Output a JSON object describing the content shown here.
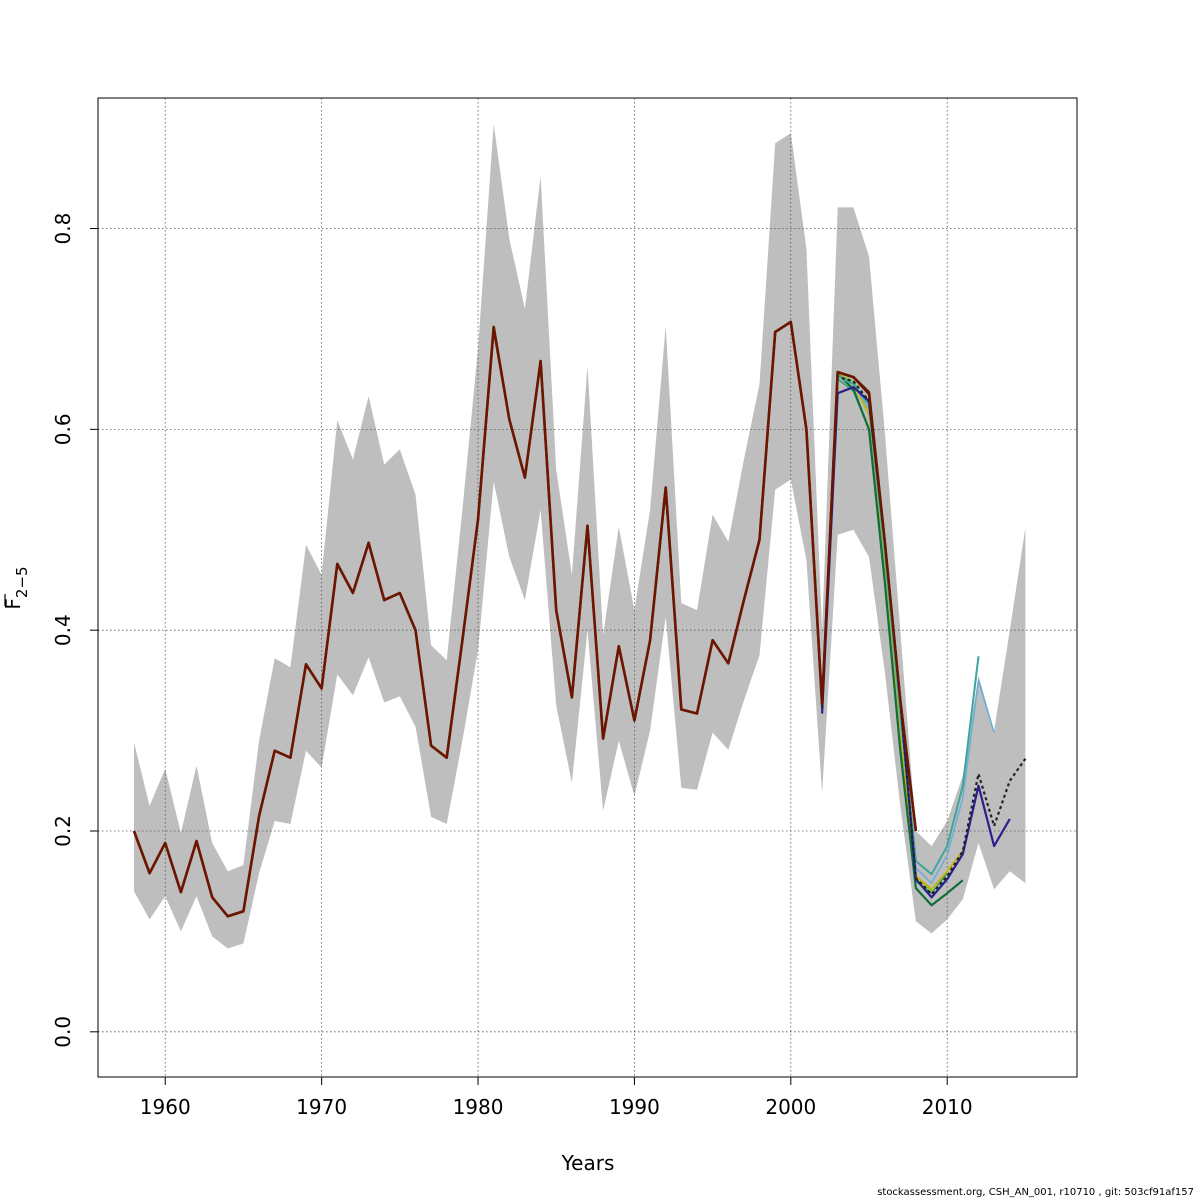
{
  "chart_data": {
    "type": "line",
    "title": "",
    "xlabel": "Years",
    "ylabel": "F 2-5",
    "ylabel_main": "F",
    "ylabel_sub": "2−5",
    "xlim": [
      1955.7,
      2018.3
    ],
    "ylim": [
      -0.045,
      0.93
    ],
    "x_ticks": [
      1960,
      1970,
      1980,
      1990,
      2000,
      2010
    ],
    "y_ticks": [
      0.0,
      0.2,
      0.4,
      0.6,
      0.8
    ],
    "x_tick_labels": [
      "1960",
      "1970",
      "1980",
      "1990",
      "2000",
      "2010"
    ],
    "y_tick_labels": [
      "0.0",
      "0.2",
      "0.4",
      "0.6",
      "0.8"
    ],
    "grid": true,
    "band_color": "#bebebe",
    "band": {
      "x": [
        1958,
        1959,
        1960,
        1961,
        1962,
        1963,
        1964,
        1965,
        1966,
        1967,
        1968,
        1969,
        1970,
        1971,
        1972,
        1973,
        1974,
        1975,
        1976,
        1977,
        1978,
        1979,
        1980,
        1981,
        1982,
        1983,
        1984,
        1985,
        1986,
        1987,
        1988,
        1989,
        1990,
        1991,
        1992,
        1993,
        1994,
        1995,
        1996,
        1997,
        1998,
        1999,
        2000,
        2001,
        2002,
        2003,
        2004,
        2005,
        2006,
        2007,
        2008,
        2009,
        2010,
        2011,
        2012,
        2013,
        2014,
        2015
      ],
      "upper": [
        0.288,
        0.225,
        0.262,
        0.198,
        0.265,
        0.188,
        0.16,
        0.166,
        0.29,
        0.372,
        0.363,
        0.485,
        0.455,
        0.609,
        0.57,
        0.633,
        0.565,
        0.58,
        0.535,
        0.385,
        0.37,
        0.52,
        0.68,
        0.904,
        0.79,
        0.72,
        0.852,
        0.56,
        0.455,
        0.663,
        0.395,
        0.503,
        0.42,
        0.52,
        0.703,
        0.427,
        0.42,
        0.515,
        0.488,
        0.57,
        0.645,
        0.885,
        0.895,
        0.78,
        0.4,
        0.821,
        0.821,
        0.772,
        0.6,
        0.4,
        0.2,
        0.185,
        0.21,
        0.255,
        0.355,
        0.3,
        0.4,
        0.502
      ],
      "lower": [
        0.14,
        0.112,
        0.135,
        0.1,
        0.135,
        0.095,
        0.083,
        0.088,
        0.158,
        0.21,
        0.207,
        0.28,
        0.263,
        0.356,
        0.335,
        0.373,
        0.328,
        0.334,
        0.304,
        0.214,
        0.207,
        0.29,
        0.38,
        0.548,
        0.473,
        0.43,
        0.52,
        0.325,
        0.248,
        0.4,
        0.22,
        0.29,
        0.235,
        0.3,
        0.413,
        0.243,
        0.241,
        0.298,
        0.281,
        0.33,
        0.375,
        0.54,
        0.55,
        0.47,
        0.238,
        0.495,
        0.5,
        0.473,
        0.36,
        0.225,
        0.11,
        0.098,
        0.112,
        0.132,
        0.188,
        0.142,
        0.16,
        0.148
      ]
    },
    "series": [
      {
        "color": "#4b2c00",
        "dashed": false,
        "width": 2.6,
        "x": [
          1958,
          1959,
          1960,
          1961,
          1962,
          1963,
          1964,
          1965,
          1966,
          1967,
          1968,
          1969,
          1970,
          1971,
          1972,
          1973,
          1974,
          1975,
          1976,
          1977,
          1978,
          1979,
          1980,
          1981,
          1982,
          1983,
          1984,
          1985,
          1986,
          1987,
          1988,
          1989,
          1990,
          1991,
          1992,
          1993,
          1994,
          1995,
          1996,
          1997,
          1998,
          1999,
          2000,
          2001,
          2002,
          2003,
          2004,
          2005,
          2006,
          2007,
          2008
        ],
        "y": [
          0.2,
          0.158,
          0.188,
          0.139,
          0.19,
          0.134,
          0.115,
          0.12,
          0.215,
          0.28,
          0.273,
          0.366,
          0.342,
          0.466,
          0.437,
          0.487,
          0.43,
          0.437,
          0.4,
          0.285,
          0.273,
          0.39,
          0.51,
          0.702,
          0.61,
          0.552,
          0.668,
          0.42,
          0.333,
          0.504,
          0.292,
          0.384,
          0.31,
          0.39,
          0.542,
          0.321,
          0.317,
          0.39,
          0.367,
          0.43,
          0.49,
          0.697,
          0.707,
          0.6,
          0.325,
          0.657,
          0.652,
          0.637,
          0.49,
          0.33,
          0.2
        ]
      },
      {
        "color": "#66cc33",
        "dashed": false,
        "width": 1.5,
        "x": [
          2001,
          2002,
          2003,
          2004,
          2005,
          2006,
          2007,
          2008,
          2009
        ],
        "y": [
          0.6,
          0.323,
          0.655,
          0.648,
          0.62,
          0.47,
          0.3,
          0.155,
          0.14
        ]
      },
      {
        "color": "#2ca25f",
        "dashed": false,
        "width": 1.5,
        "x": [
          2002,
          2003,
          2004,
          2005,
          2006,
          2007,
          2008,
          2009,
          2010
        ],
        "y": [
          0.322,
          0.65,
          0.638,
          0.6,
          0.46,
          0.29,
          0.15,
          0.138,
          0.158
        ]
      },
      {
        "color": "#c8b400",
        "dashed": false,
        "width": 1.8,
        "x": [
          2002,
          2003,
          2004,
          2005,
          2006,
          2007,
          2008,
          2009,
          2010,
          2011
        ],
        "y": [
          0.323,
          0.656,
          0.645,
          0.615,
          0.47,
          0.3,
          0.155,
          0.142,
          0.16,
          0.18
        ]
      },
      {
        "color": "#0f6e3a",
        "dashed": false,
        "width": 2.2,
        "x": [
          2002,
          2003,
          2004,
          2005,
          2006,
          2007,
          2008,
          2009,
          2010,
          2011
        ],
        "y": [
          0.322,
          0.655,
          0.64,
          0.6,
          0.45,
          0.28,
          0.143,
          0.126,
          0.138,
          0.151
        ]
      },
      {
        "color": "#6baed6",
        "dashed": false,
        "width": 1.5,
        "x": [
          2002,
          2003,
          2004,
          2005,
          2006,
          2007,
          2008,
          2009,
          2010,
          2011,
          2012,
          2013
        ],
        "y": [
          0.322,
          0.652,
          0.645,
          0.62,
          0.475,
          0.31,
          0.163,
          0.148,
          0.176,
          0.233,
          0.35,
          0.298
        ]
      },
      {
        "color": "#3fa59c",
        "dashed": false,
        "width": 2.0,
        "x": [
          2002,
          2003,
          2004,
          2005,
          2006,
          2007,
          2008,
          2009,
          2010,
          2011,
          2012
        ],
        "y": [
          0.322,
          0.654,
          0.645,
          0.625,
          0.48,
          0.32,
          0.17,
          0.157,
          0.185,
          0.245,
          0.374
        ]
      },
      {
        "color": "#2a1f8f",
        "dashed": false,
        "width": 2.2,
        "x": [
          2002,
          2003,
          2004,
          2005,
          2006,
          2007,
          2008,
          2009,
          2010,
          2011,
          2012,
          2013,
          2014
        ],
        "y": [
          0.317,
          0.636,
          0.642,
          0.628,
          0.49,
          0.33,
          0.152,
          0.134,
          0.152,
          0.177,
          0.245,
          0.185,
          0.212
        ]
      },
      {
        "color": "#222222",
        "dashed": true,
        "width": 2.2,
        "x": [
          2002,
          2003,
          2004,
          2005,
          2006,
          2007,
          2008,
          2009,
          2010,
          2011,
          2012,
          2013,
          2014,
          2015
        ],
        "y": [
          0.322,
          0.652,
          0.648,
          0.628,
          0.49,
          0.33,
          0.153,
          0.137,
          0.155,
          0.18,
          0.257,
          0.205,
          0.25,
          0.272
        ]
      },
      {
        "color": "#6e1400",
        "dashed": false,
        "width": 2.4,
        "x": [
          1958,
          1959,
          1960,
          1961,
          1962,
          1963,
          1964,
          1965,
          1966,
          1967,
          1968,
          1969,
          1970,
          1971,
          1972,
          1973,
          1974,
          1975,
          1976,
          1977,
          1978,
          1979,
          1980,
          1981,
          1982,
          1983,
          1984,
          1985,
          1986,
          1987,
          1988,
          1989,
          1990,
          1991,
          1992,
          1993,
          1994,
          1995,
          1996,
          1997,
          1998,
          1999,
          2000,
          2001,
          2002,
          2003,
          2004,
          2005,
          2006,
          2007,
          2008
        ],
        "y": [
          0.2,
          0.158,
          0.188,
          0.139,
          0.19,
          0.134,
          0.115,
          0.12,
          0.215,
          0.28,
          0.273,
          0.366,
          0.342,
          0.466,
          0.437,
          0.487,
          0.43,
          0.437,
          0.4,
          0.285,
          0.273,
          0.39,
          0.51,
          0.7,
          0.61,
          0.552,
          0.668,
          0.42,
          0.333,
          0.504,
          0.292,
          0.384,
          0.31,
          0.39,
          0.542,
          0.321,
          0.317,
          0.39,
          0.367,
          0.43,
          0.49,
          0.697,
          0.707,
          0.6,
          0.327,
          0.657,
          0.652,
          0.635,
          0.49,
          0.33,
          0.2
        ]
      }
    ]
  },
  "footer": {
    "credit": "stockassessment.org, CSH_AN_001, r10710 , git: 503cf91af157"
  }
}
